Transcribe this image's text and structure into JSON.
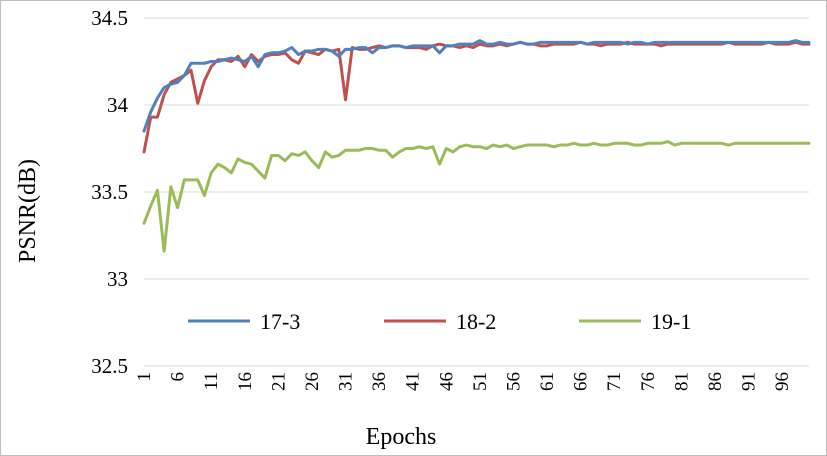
{
  "chart_data": {
    "type": "line",
    "title": "",
    "xlabel": "Epochs",
    "ylabel": "PSNR(dB)",
    "ylim": [
      32.5,
      34.5
    ],
    "yticks": [
      "32.5",
      "33",
      "33.5",
      "34",
      "34.5"
    ],
    "xtick_labels": [
      "1",
      "6",
      "11",
      "16",
      "21",
      "26",
      "31",
      "36",
      "41",
      "46",
      "51",
      "56",
      "61",
      "66",
      "71",
      "76",
      "81",
      "86",
      "91",
      "96"
    ],
    "grid": "horizontal",
    "legend_position": "inside-bottom",
    "x": [
      1,
      2,
      3,
      4,
      5,
      6,
      7,
      8,
      9,
      10,
      11,
      12,
      13,
      14,
      15,
      16,
      17,
      18,
      19,
      20,
      21,
      22,
      23,
      24,
      25,
      26,
      27,
      28,
      29,
      30,
      31,
      32,
      33,
      34,
      35,
      36,
      37,
      38,
      39,
      40,
      41,
      42,
      43,
      44,
      45,
      46,
      47,
      48,
      49,
      50,
      51,
      52,
      53,
      54,
      55,
      56,
      57,
      58,
      59,
      60,
      61,
      62,
      63,
      64,
      65,
      66,
      67,
      68,
      69,
      70,
      71,
      72,
      73,
      74,
      75,
      76,
      77,
      78,
      79,
      80,
      81,
      82,
      83,
      84,
      85,
      86,
      87,
      88,
      89,
      90,
      91,
      92,
      93,
      94,
      95,
      96,
      97,
      98,
      99,
      100
    ],
    "series": [
      {
        "name": "17-3",
        "color": "#4F81BD",
        "values": [
          33.85,
          33.96,
          34.04,
          34.1,
          34.12,
          34.13,
          34.17,
          34.24,
          34.24,
          34.24,
          34.25,
          34.25,
          34.26,
          34.27,
          34.26,
          34.25,
          34.28,
          34.22,
          34.29,
          34.3,
          34.3,
          34.31,
          34.33,
          34.29,
          34.31,
          34.31,
          34.32,
          34.32,
          34.31,
          34.28,
          34.32,
          34.32,
          34.33,
          34.33,
          34.3,
          34.33,
          34.33,
          34.34,
          34.34,
          34.33,
          34.34,
          34.34,
          34.34,
          34.34,
          34.3,
          34.34,
          34.34,
          34.35,
          34.35,
          34.35,
          34.37,
          34.35,
          34.35,
          34.36,
          34.35,
          34.35,
          34.36,
          34.35,
          34.35,
          34.36,
          34.36,
          34.36,
          34.36,
          34.36,
          34.36,
          34.36,
          34.35,
          34.36,
          34.36,
          34.36,
          34.36,
          34.36,
          34.35,
          34.36,
          34.36,
          34.35,
          34.36,
          34.36,
          34.36,
          34.36,
          34.36,
          34.36,
          34.36,
          34.36,
          34.36,
          34.36,
          34.36,
          34.36,
          34.36,
          34.36,
          34.36,
          34.36,
          34.36,
          34.36,
          34.36,
          34.36,
          34.36,
          34.37,
          34.36,
          34.36
        ]
      },
      {
        "name": "18-2",
        "color": "#C0504D",
        "values": [
          33.73,
          33.93,
          33.93,
          34.06,
          34.13,
          34.15,
          34.17,
          34.2,
          34.01,
          34.14,
          34.22,
          34.26,
          34.26,
          34.25,
          34.28,
          34.22,
          34.29,
          34.25,
          34.28,
          34.29,
          34.29,
          34.3,
          34.26,
          34.24,
          34.31,
          34.3,
          34.29,
          34.32,
          34.31,
          34.32,
          34.03,
          34.33,
          34.32,
          34.32,
          34.33,
          34.34,
          34.33,
          34.34,
          34.34,
          34.33,
          34.33,
          34.33,
          34.32,
          34.34,
          34.35,
          34.34,
          34.34,
          34.33,
          34.34,
          34.33,
          34.35,
          34.34,
          34.34,
          34.35,
          34.34,
          34.35,
          34.36,
          34.35,
          34.35,
          34.34,
          34.34,
          34.35,
          34.35,
          34.35,
          34.35,
          34.36,
          34.35,
          34.35,
          34.34,
          34.35,
          34.35,
          34.35,
          34.36,
          34.35,
          34.35,
          34.35,
          34.35,
          34.34,
          34.35,
          34.35,
          34.35,
          34.35,
          34.35,
          34.35,
          34.35,
          34.35,
          34.35,
          34.36,
          34.35,
          34.35,
          34.35,
          34.35,
          34.35,
          34.36,
          34.35,
          34.35,
          34.35,
          34.36,
          34.35,
          34.35
        ]
      },
      {
        "name": "19-1",
        "color": "#9BBB59",
        "values": [
          33.32,
          33.42,
          33.51,
          33.16,
          33.53,
          33.41,
          33.57,
          33.57,
          33.57,
          33.48,
          33.61,
          33.66,
          33.64,
          33.61,
          33.69,
          33.67,
          33.66,
          33.62,
          33.58,
          33.71,
          33.71,
          33.68,
          33.72,
          33.71,
          33.73,
          33.68,
          33.64,
          33.73,
          33.7,
          33.71,
          33.74,
          33.74,
          33.74,
          33.75,
          33.75,
          33.74,
          33.74,
          33.7,
          33.73,
          33.75,
          33.75,
          33.76,
          33.75,
          33.76,
          33.66,
          33.75,
          33.73,
          33.76,
          33.77,
          33.76,
          33.76,
          33.75,
          33.77,
          33.76,
          33.77,
          33.75,
          33.76,
          33.77,
          33.77,
          33.77,
          33.77,
          33.76,
          33.77,
          33.77,
          33.78,
          33.77,
          33.77,
          33.78,
          33.77,
          33.77,
          33.78,
          33.78,
          33.78,
          33.77,
          33.77,
          33.78,
          33.78,
          33.78,
          33.79,
          33.77,
          33.78,
          33.78,
          33.78,
          33.78,
          33.78,
          33.78,
          33.78,
          33.77,
          33.78,
          33.78,
          33.78,
          33.78,
          33.78,
          33.78,
          33.78,
          33.78,
          33.78,
          33.78,
          33.78,
          33.78
        ]
      }
    ]
  }
}
